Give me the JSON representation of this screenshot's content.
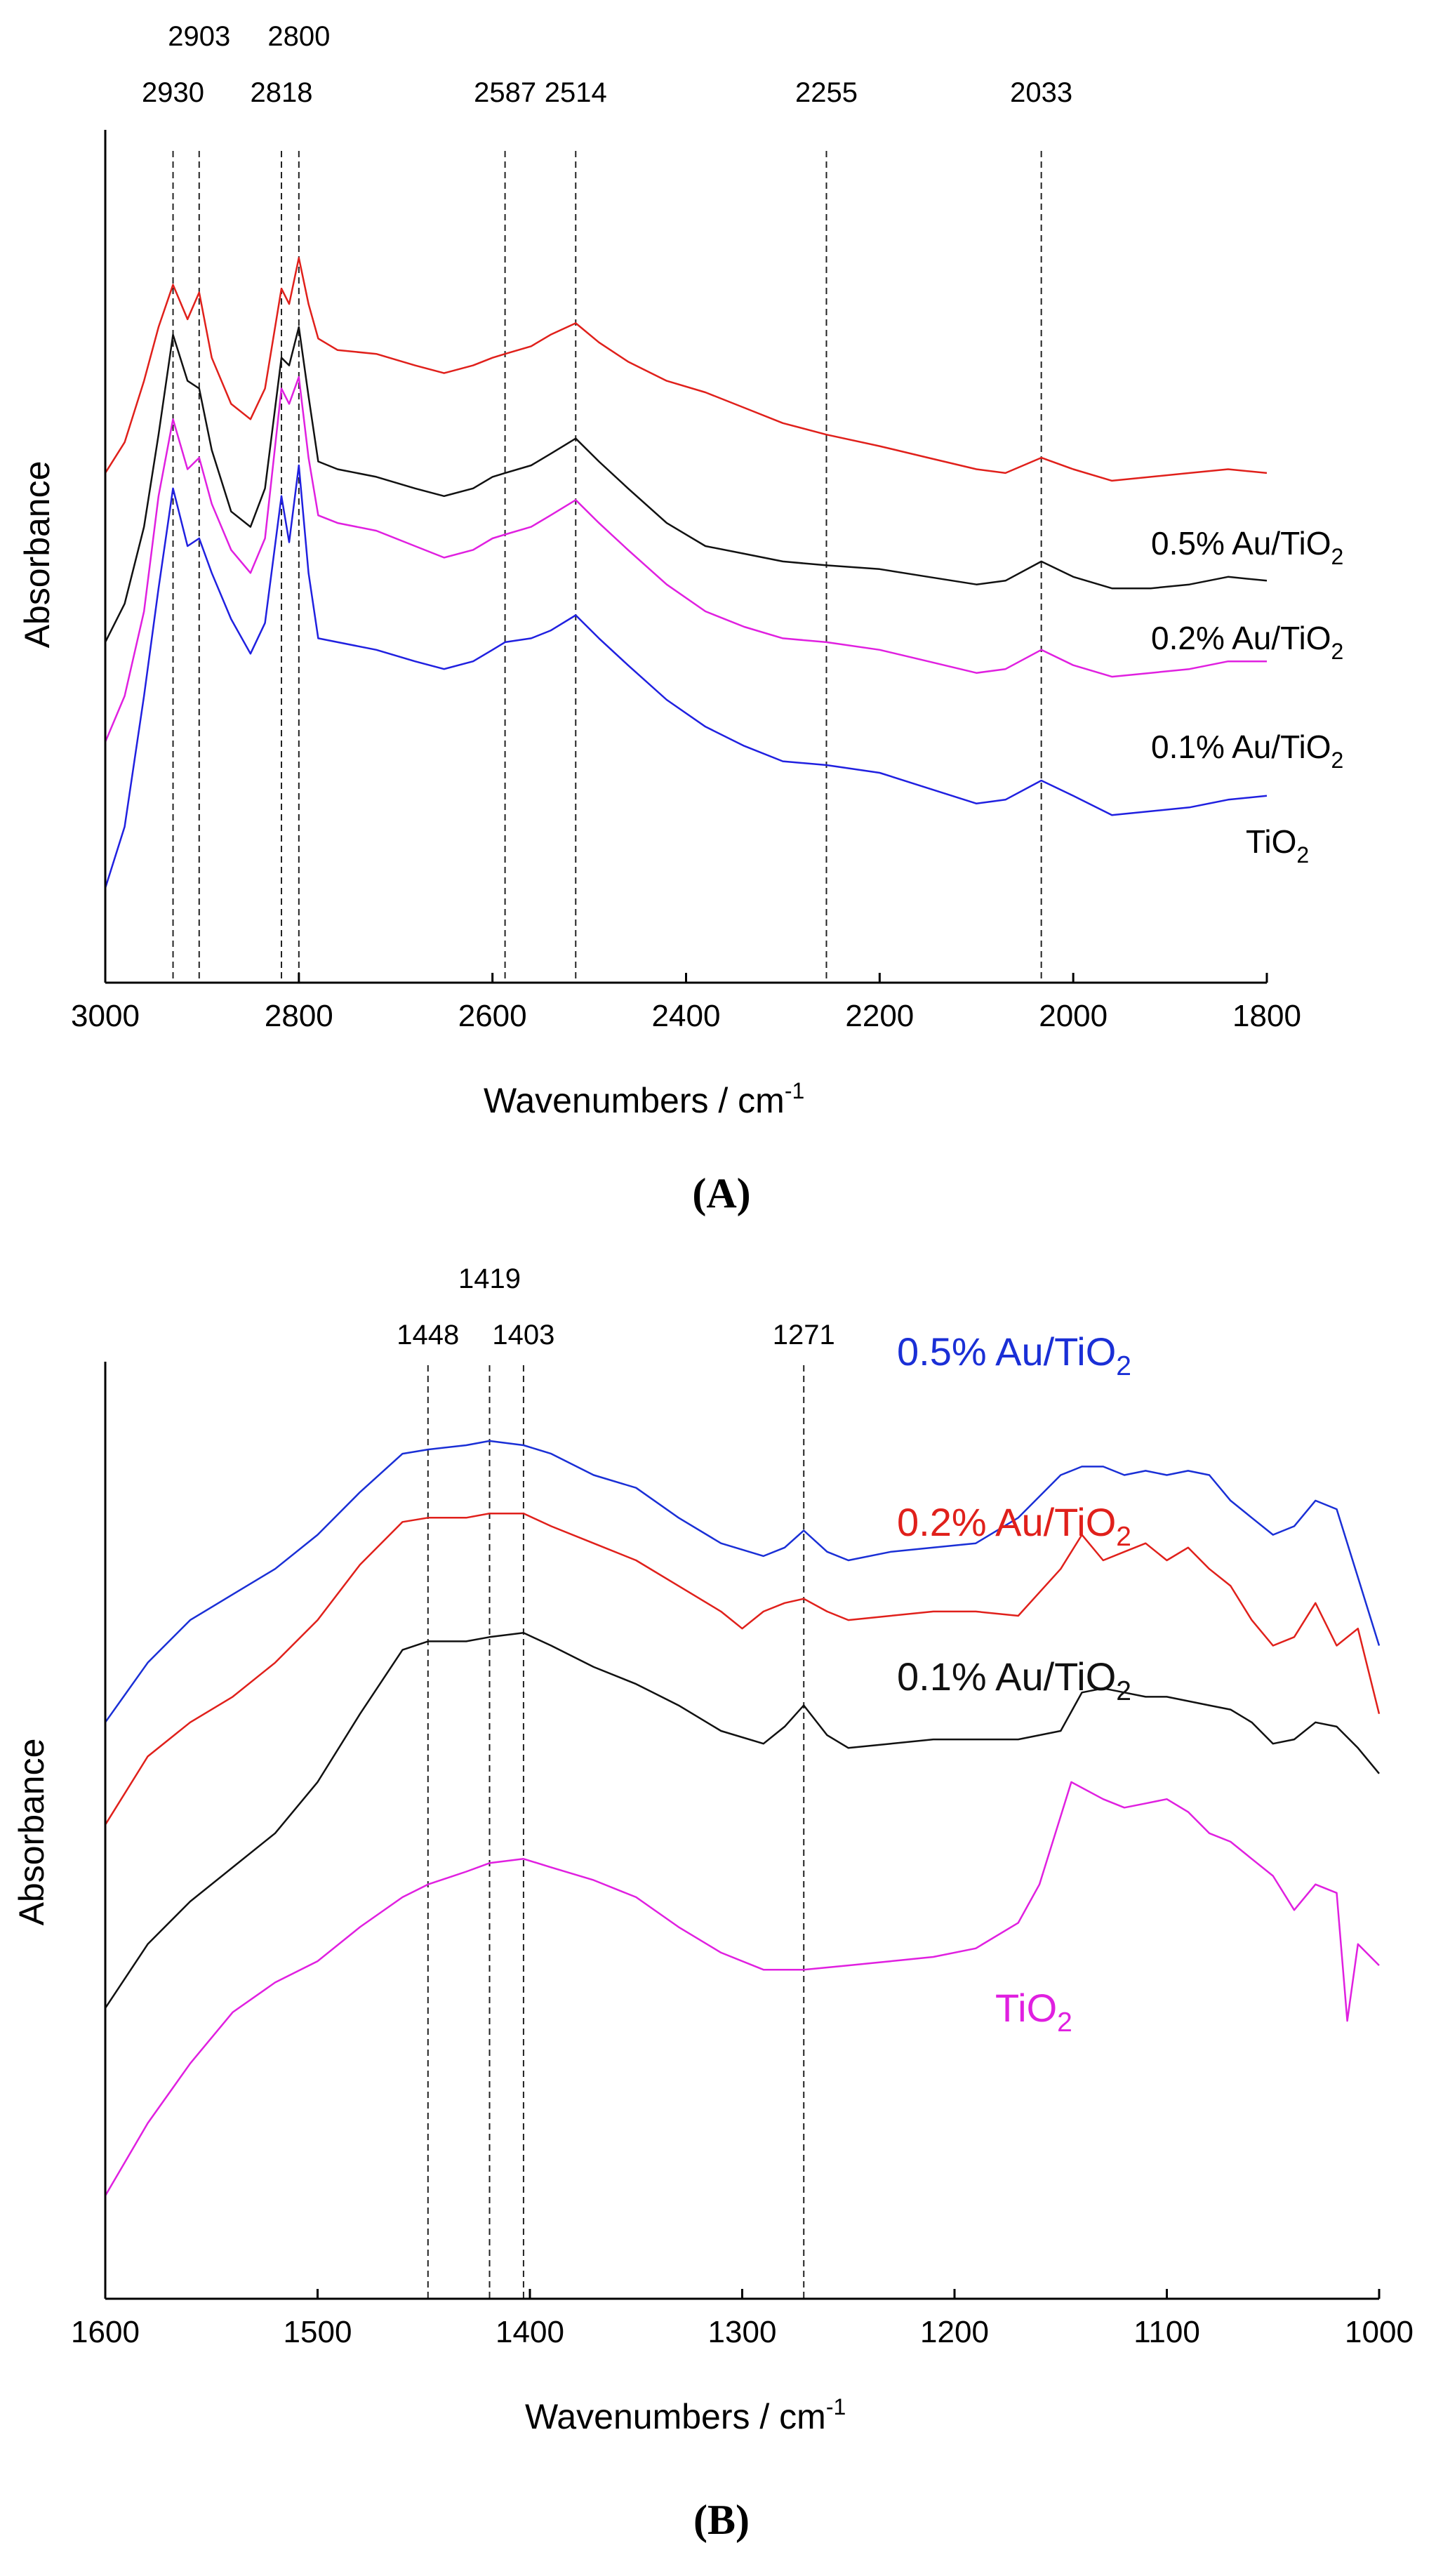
{
  "chart_data": [
    {
      "panel": "A",
      "caption": "A",
      "type": "line",
      "xlabel": "Wavenumbers / cm",
      "xlabel_sup": "-1",
      "ylabel": "Absorbance",
      "xlim": [
        3000,
        1800
      ],
      "x_reversed": true,
      "x_ticks": [
        3000,
        2800,
        2600,
        2400,
        2200,
        2000,
        1800
      ],
      "y_ticks": "none",
      "legend": "labels-at-right",
      "reference_lines": [
        2930,
        2903,
        2818,
        2800,
        2587,
        2514,
        2255,
        2033
      ],
      "series": [
        {
          "name": "0.5% Au/TiO2",
          "label_main": "0.5% Au/TiO",
          "label_sub": "2",
          "color": "#e0201b",
          "x": [
            3000,
            2980,
            2960,
            2945,
            2930,
            2915,
            2903,
            2890,
            2870,
            2850,
            2835,
            2818,
            2810,
            2800,
            2790,
            2780,
            2760,
            2720,
            2680,
            2650,
            2620,
            2600,
            2587,
            2560,
            2540,
            2514,
            2490,
            2460,
            2420,
            2380,
            2340,
            2300,
            2255,
            2200,
            2150,
            2100,
            2070,
            2033,
            2000,
            1960,
            1920,
            1880,
            1840,
            1800
          ],
          "y": [
            5.9,
            6.3,
            7.1,
            7.8,
            8.35,
            7.9,
            8.25,
            7.4,
            6.8,
            6.6,
            7.0,
            8.3,
            8.1,
            8.7,
            8.1,
            7.65,
            7.5,
            7.45,
            7.3,
            7.2,
            7.3,
            7.4,
            7.45,
            7.55,
            7.7,
            7.85,
            7.6,
            7.35,
            7.1,
            6.95,
            6.75,
            6.55,
            6.4,
            6.25,
            6.1,
            5.95,
            5.9,
            6.1,
            5.95,
            5.8,
            5.85,
            5.9,
            5.95,
            5.9
          ]
        },
        {
          "name": "0.2% Au/TiO2",
          "label_main": "0.2% Au/TiO",
          "label_sub": "2",
          "color": "#111111",
          "x": [
            3000,
            2980,
            2960,
            2945,
            2930,
            2915,
            2903,
            2890,
            2870,
            2850,
            2835,
            2818,
            2810,
            2800,
            2790,
            2780,
            2760,
            2720,
            2680,
            2650,
            2620,
            2600,
            2587,
            2560,
            2540,
            2514,
            2490,
            2460,
            2420,
            2380,
            2340,
            2300,
            2255,
            2200,
            2150,
            2100,
            2070,
            2033,
            2000,
            1960,
            1920,
            1880,
            1840,
            1800
          ],
          "y": [
            3.7,
            4.2,
            5.2,
            6.4,
            7.7,
            7.1,
            7.0,
            6.2,
            5.4,
            5.2,
            5.7,
            7.4,
            7.3,
            7.8,
            6.9,
            6.05,
            5.95,
            5.85,
            5.7,
            5.6,
            5.7,
            5.85,
            5.9,
            6.0,
            6.15,
            6.35,
            6.05,
            5.7,
            5.25,
            4.95,
            4.85,
            4.75,
            4.7,
            4.65,
            4.55,
            4.45,
            4.5,
            4.75,
            4.55,
            4.4,
            4.4,
            4.45,
            4.55,
            4.5
          ]
        },
        {
          "name": "0.1% Au/TiO2",
          "label_main": "0.1% Au/TiO",
          "label_sub": "2",
          "color": "#e020e0",
          "x": [
            3000,
            2980,
            2960,
            2945,
            2930,
            2915,
            2903,
            2890,
            2870,
            2850,
            2835,
            2818,
            2810,
            2800,
            2790,
            2780,
            2760,
            2720,
            2680,
            2650,
            2620,
            2600,
            2587,
            2560,
            2540,
            2514,
            2490,
            2460,
            2420,
            2380,
            2340,
            2300,
            2255,
            2200,
            2150,
            2100,
            2070,
            2033,
            2000,
            1960,
            1920,
            1880,
            1840,
            1800
          ],
          "y": [
            2.4,
            3.0,
            4.1,
            5.6,
            6.6,
            5.95,
            6.1,
            5.5,
            4.9,
            4.6,
            5.05,
            7.0,
            6.8,
            7.15,
            6.1,
            5.35,
            5.25,
            5.15,
            4.95,
            4.8,
            4.9,
            5.05,
            5.1,
            5.2,
            5.35,
            5.55,
            5.25,
            4.9,
            4.45,
            4.1,
            3.9,
            3.75,
            3.7,
            3.6,
            3.45,
            3.3,
            3.35,
            3.6,
            3.4,
            3.25,
            3.3,
            3.35,
            3.45,
            3.45
          ]
        },
        {
          "name": "TiO2",
          "label_main": "TiO",
          "label_sub": "2",
          "color": "#2020e0",
          "x": [
            3000,
            2980,
            2960,
            2945,
            2930,
            2915,
            2903,
            2890,
            2870,
            2850,
            2835,
            2818,
            2810,
            2800,
            2790,
            2780,
            2760,
            2720,
            2680,
            2650,
            2620,
            2600,
            2587,
            2560,
            2540,
            2514,
            2490,
            2460,
            2420,
            2380,
            2340,
            2300,
            2255,
            2200,
            2150,
            2100,
            2070,
            2033,
            2000,
            1960,
            1920,
            1880,
            1840,
            1800
          ],
          "y": [
            0.5,
            1.3,
            3.0,
            4.4,
            5.7,
            4.95,
            5.05,
            4.6,
            4.0,
            3.55,
            3.95,
            5.6,
            5.0,
            6.0,
            4.6,
            3.75,
            3.7,
            3.6,
            3.45,
            3.35,
            3.45,
            3.6,
            3.7,
            3.75,
            3.85,
            4.05,
            3.75,
            3.4,
            2.95,
            2.6,
            2.35,
            2.15,
            2.1,
            2.0,
            1.8,
            1.6,
            1.65,
            1.9,
            1.7,
            1.45,
            1.5,
            1.55,
            1.65,
            1.7
          ]
        }
      ]
    },
    {
      "panel": "B",
      "caption": "B",
      "type": "line",
      "xlabel": "Wavenumbers / cm",
      "xlabel_sup": "-1",
      "ylabel": "Absorbance",
      "xlim": [
        1600,
        1000
      ],
      "x_reversed": true,
      "x_ticks": [
        1600,
        1500,
        1400,
        1300,
        1200,
        1100,
        1000
      ],
      "y_ticks": "none",
      "legend": "labels-beside-curves",
      "reference_lines": [
        1448,
        1419,
        1403,
        1271
      ],
      "series": [
        {
          "name": "0.5% Au/TiO2",
          "label_main": "0.5% Au/TiO",
          "label_sub": "2",
          "color": "#1a2fd6",
          "x": [
            1600,
            1580,
            1560,
            1540,
            1520,
            1500,
            1480,
            1460,
            1448,
            1430,
            1419,
            1403,
            1390,
            1370,
            1350,
            1330,
            1310,
            1290,
            1280,
            1271,
            1260,
            1250,
            1230,
            1210,
            1190,
            1170,
            1150,
            1140,
            1130,
            1120,
            1110,
            1100,
            1090,
            1080,
            1070,
            1060,
            1050,
            1040,
            1030,
            1020,
            1010,
            1000
          ],
          "y": [
            6.1,
            6.8,
            7.3,
            7.6,
            7.9,
            8.3,
            8.8,
            9.25,
            9.3,
            9.35,
            9.4,
            9.35,
            9.25,
            9.0,
            8.85,
            8.5,
            8.2,
            8.05,
            8.15,
            8.35,
            8.1,
            8.0,
            8.1,
            8.15,
            8.2,
            8.5,
            9.0,
            9.1,
            9.1,
            9.0,
            9.05,
            9.0,
            9.05,
            9.0,
            8.7,
            8.5,
            8.3,
            8.4,
            8.7,
            8.6,
            7.8,
            7.0
          ]
        },
        {
          "name": "0.2% Au/TiO2",
          "label_main": "0.2% Au/TiO",
          "label_sub": "2",
          "color": "#e0201b",
          "x": [
            1600,
            1580,
            1560,
            1540,
            1520,
            1500,
            1480,
            1460,
            1448,
            1430,
            1419,
            1403,
            1390,
            1370,
            1350,
            1330,
            1310,
            1300,
            1290,
            1280,
            1271,
            1260,
            1250,
            1230,
            1210,
            1190,
            1170,
            1150,
            1140,
            1130,
            1120,
            1110,
            1100,
            1090,
            1080,
            1070,
            1060,
            1050,
            1040,
            1030,
            1020,
            1010,
            1000
          ],
          "y": [
            4.9,
            5.7,
            6.1,
            6.4,
            6.8,
            7.3,
            7.95,
            8.45,
            8.5,
            8.5,
            8.55,
            8.55,
            8.4,
            8.2,
            8.0,
            7.7,
            7.4,
            7.2,
            7.4,
            7.5,
            7.55,
            7.4,
            7.3,
            7.35,
            7.4,
            7.4,
            7.35,
            7.9,
            8.3,
            8.0,
            8.1,
            8.2,
            8.0,
            8.15,
            7.9,
            7.7,
            7.3,
            7.0,
            7.1,
            7.5,
            7.0,
            7.2,
            6.2
          ]
        },
        {
          "name": "0.1% Au/TiO2",
          "label_main": "0.1% Au/TiO",
          "label_sub": "2",
          "color": "#111111",
          "x": [
            1600,
            1580,
            1560,
            1540,
            1520,
            1500,
            1480,
            1460,
            1448,
            1430,
            1419,
            1403,
            1390,
            1370,
            1350,
            1330,
            1310,
            1290,
            1280,
            1271,
            1260,
            1250,
            1230,
            1210,
            1190,
            1170,
            1150,
            1140,
            1130,
            1120,
            1110,
            1100,
            1090,
            1080,
            1070,
            1060,
            1050,
            1040,
            1030,
            1020,
            1010,
            1000
          ],
          "y": [
            2.75,
            3.5,
            4.0,
            4.4,
            4.8,
            5.4,
            6.2,
            6.95,
            7.05,
            7.05,
            7.1,
            7.15,
            7.0,
            6.75,
            6.55,
            6.3,
            6.0,
            5.85,
            6.05,
            6.3,
            5.95,
            5.8,
            5.85,
            5.9,
            5.9,
            5.9,
            6.0,
            6.45,
            6.5,
            6.45,
            6.4,
            6.4,
            6.35,
            6.3,
            6.25,
            6.1,
            5.85,
            5.9,
            6.1,
            6.05,
            5.8,
            5.5
          ]
        },
        {
          "name": "TiO2",
          "label_main": "TiO",
          "label_sub": "2",
          "color": "#e020e0",
          "x": [
            1600,
            1580,
            1560,
            1540,
            1520,
            1500,
            1480,
            1460,
            1448,
            1430,
            1419,
            1403,
            1390,
            1370,
            1350,
            1330,
            1310,
            1290,
            1271,
            1250,
            1230,
            1210,
            1190,
            1170,
            1160,
            1150,
            1145,
            1130,
            1120,
            1110,
            1100,
            1090,
            1080,
            1070,
            1060,
            1050,
            1040,
            1030,
            1020,
            1015,
            1010,
            1000
          ],
          "y": [
            0.55,
            1.4,
            2.1,
            2.7,
            3.05,
            3.3,
            3.7,
            4.05,
            4.2,
            4.35,
            4.45,
            4.5,
            4.4,
            4.25,
            4.05,
            3.7,
            3.4,
            3.2,
            3.2,
            3.25,
            3.3,
            3.35,
            3.45,
            3.75,
            4.2,
            5.0,
            5.4,
            5.2,
            5.1,
            5.15,
            5.2,
            5.05,
            4.8,
            4.7,
            4.5,
            4.3,
            3.9,
            4.2,
            4.1,
            2.6,
            3.5,
            3.25
          ]
        }
      ]
    }
  ]
}
